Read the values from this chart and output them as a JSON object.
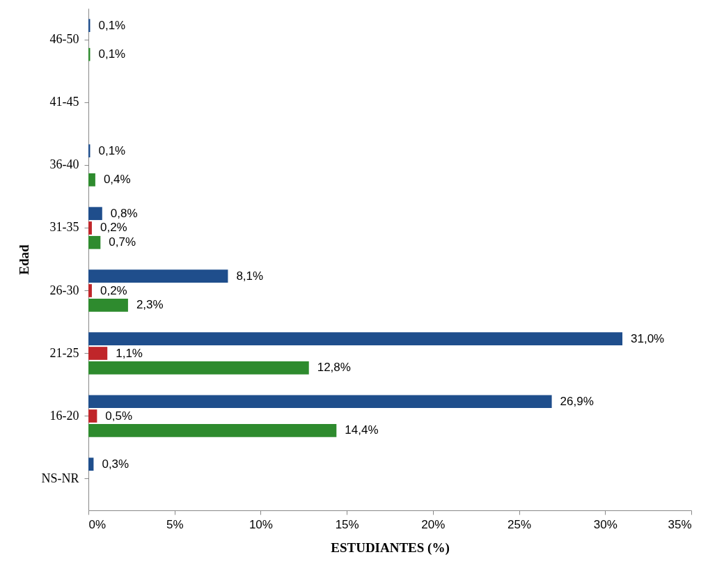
{
  "chart_data": {
    "type": "bar",
    "orientation": "horizontal",
    "xlabel": "ESTUDIANTES  (%)",
    "ylabel": "Edad",
    "categories": [
      "46-50",
      "41-45",
      "36-40",
      "31-35",
      "26-30",
      "21-25",
      "16-20",
      "NS-NR"
    ],
    "series": [
      {
        "color": "#1f4e8c",
        "values": [
          0.1,
          null,
          0.1,
          0.8,
          8.1,
          31.0,
          26.9,
          0.3
        ],
        "value_labels": [
          "0,1%",
          null,
          "0,1%",
          "0,8%",
          "8,1%",
          "31,0%",
          "26,9%",
          "0,3%"
        ]
      },
      {
        "color": "#c0262a",
        "values": [
          null,
          null,
          null,
          0.2,
          0.2,
          1.1,
          0.5,
          null
        ],
        "value_labels": [
          null,
          null,
          null,
          "0,2%",
          "0,2%",
          "1,1%",
          "0,5%",
          null
        ]
      },
      {
        "color": "#2e8b2e",
        "values": [
          0.1,
          null,
          0.4,
          0.7,
          2.3,
          12.8,
          14.4,
          null
        ],
        "value_labels": [
          "0,1%",
          null,
          "0,4%",
          "0,7%",
          "2,3%",
          "12,8%",
          "14,4%",
          null
        ]
      }
    ],
    "xlim": [
      0,
      35
    ],
    "xticks": [
      {
        "value": 0,
        "label": "0%"
      },
      {
        "value": 5,
        "label": "5%"
      },
      {
        "value": 10,
        "label": "10%"
      },
      {
        "value": 15,
        "label": "15%"
      },
      {
        "value": 20,
        "label": "20%"
      },
      {
        "value": 25,
        "label": "25%"
      },
      {
        "value": 30,
        "label": "30%"
      },
      {
        "value": 35,
        "label": "35%"
      }
    ],
    "grid": false,
    "legend": false
  }
}
